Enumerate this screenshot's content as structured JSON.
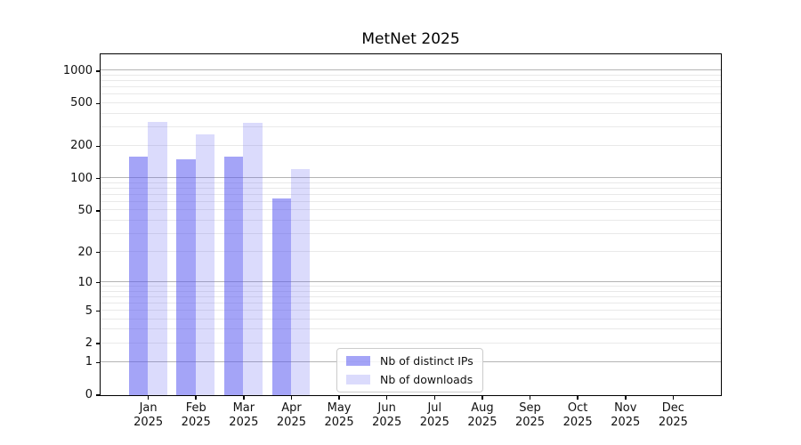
{
  "chart_data": {
    "type": "bar",
    "title": "MetNet 2025",
    "categories": [
      "Jan 2025",
      "Feb 2025",
      "Mar 2025",
      "Apr 2025",
      "May 2025",
      "Jun 2025",
      "Jul 2025",
      "Aug 2025",
      "Sep 2025",
      "Oct 2025",
      "Nov 2025",
      "Dec 2025"
    ],
    "series": [
      {
        "name": "Nb of distinct IPs",
        "color": "#5a5af0",
        "alpha": 0.55,
        "values": [
          160,
          150,
          160,
          65,
          0,
          0,
          0,
          0,
          0,
          0,
          0,
          0
        ]
      },
      {
        "name": "Nb of downloads",
        "color": "#5a5af0",
        "alpha": 0.22,
        "values": [
          335,
          255,
          328,
          122,
          0,
          0,
          0,
          0,
          0,
          0,
          0,
          0
        ]
      }
    ],
    "yscale": "log1p",
    "yticks": [
      0,
      1,
      2,
      5,
      10,
      20,
      50,
      100,
      200,
      500,
      1000
    ],
    "major_gridlines": [
      1,
      10,
      100,
      1000
    ],
    "ylim": [
      0,
      1430
    ],
    "xlabel": "",
    "ylabel": "",
    "grid": true,
    "legend": {
      "position": "inside-bottom-center",
      "entries": [
        "Nb of distinct IPs",
        "Nb of downloads"
      ]
    }
  }
}
